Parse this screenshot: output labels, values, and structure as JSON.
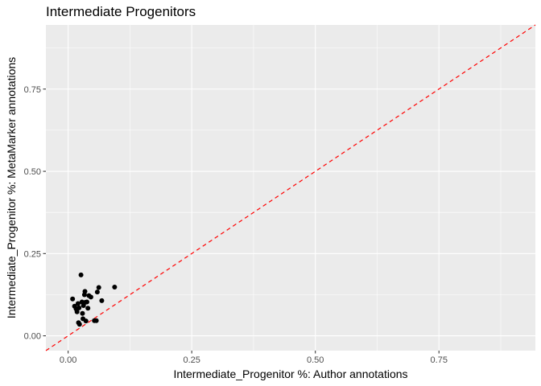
{
  "chart_data": {
    "type": "scatter",
    "title": "Intermediate Progenitors",
    "xlabel": "Intermediate_Progenitor %: Author annotations",
    "ylabel": "Intermediate_Progenitor %: MetaMarker annotations",
    "xlim": [
      -0.045,
      0.945
    ],
    "ylim": [
      -0.045,
      0.945
    ],
    "x_ticks": [
      0.0,
      0.25,
      0.5,
      0.75
    ],
    "x_tick_labels": [
      "0.00",
      "0.25",
      "0.50",
      "0.75"
    ],
    "y_ticks": [
      0.0,
      0.25,
      0.5,
      0.75
    ],
    "y_tick_labels": [
      "0.00",
      "0.25",
      "0.50",
      "0.75"
    ],
    "grid": true,
    "reference_line": {
      "slope": 1,
      "intercept": 0,
      "color": "#ff0000",
      "style": "dashed"
    },
    "point_color": "#000000",
    "points": [
      {
        "x": 0.009,
        "y": 0.112
      },
      {
        "x": 0.013,
        "y": 0.09
      },
      {
        "x": 0.016,
        "y": 0.082
      },
      {
        "x": 0.018,
        "y": 0.073
      },
      {
        "x": 0.02,
        "y": 0.098
      },
      {
        "x": 0.022,
        "y": 0.085
      },
      {
        "x": 0.021,
        "y": 0.04
      },
      {
        "x": 0.023,
        "y": 0.035
      },
      {
        "x": 0.026,
        "y": 0.185
      },
      {
        "x": 0.028,
        "y": 0.103
      },
      {
        "x": 0.029,
        "y": 0.068
      },
      {
        "x": 0.03,
        "y": 0.052
      },
      {
        "x": 0.031,
        "y": 0.092
      },
      {
        "x": 0.033,
        "y": 0.125
      },
      {
        "x": 0.034,
        "y": 0.135
      },
      {
        "x": 0.035,
        "y": 0.102
      },
      {
        "x": 0.036,
        "y": 0.045
      },
      {
        "x": 0.038,
        "y": 0.103
      },
      {
        "x": 0.04,
        "y": 0.084
      },
      {
        "x": 0.042,
        "y": 0.122
      },
      {
        "x": 0.046,
        "y": 0.118
      },
      {
        "x": 0.053,
        "y": 0.046
      },
      {
        "x": 0.057,
        "y": 0.046
      },
      {
        "x": 0.059,
        "y": 0.133
      },
      {
        "x": 0.062,
        "y": 0.147
      },
      {
        "x": 0.068,
        "y": 0.107
      },
      {
        "x": 0.094,
        "y": 0.148
      }
    ]
  }
}
